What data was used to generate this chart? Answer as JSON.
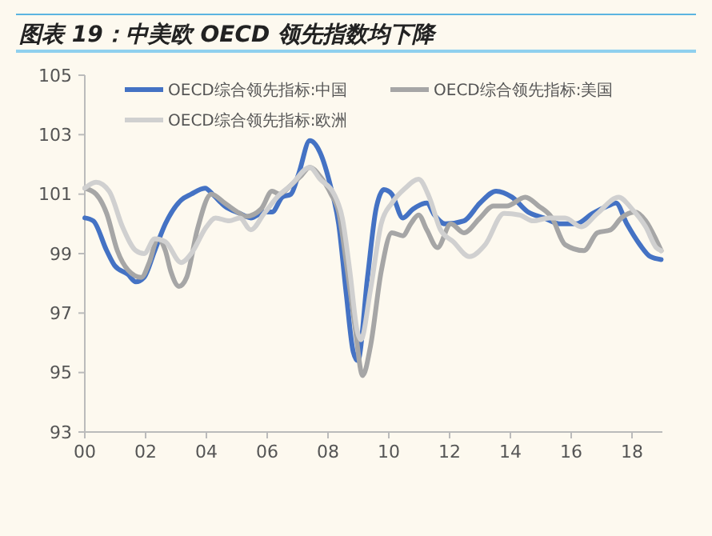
{
  "chart_data": {
    "type": "line",
    "title": "图表 19：中美欧 OECD 领先指数均下降",
    "xlim": [
      2000,
      2019
    ],
    "xticks": [
      {
        "value": 2000,
        "label": "00"
      },
      {
        "value": 2002,
        "label": "02"
      },
      {
        "value": 2004,
        "label": "04"
      },
      {
        "value": 2006,
        "label": "06"
      },
      {
        "value": 2008,
        "label": "08"
      },
      {
        "value": 2010,
        "label": "10"
      },
      {
        "value": 2012,
        "label": "12"
      },
      {
        "value": 2014,
        "label": "14"
      },
      {
        "value": 2016,
        "label": "16"
      },
      {
        "value": 2018,
        "label": "18"
      }
    ],
    "ylim": [
      93,
      105
    ],
    "yticks": [
      93,
      95,
      97,
      99,
      101,
      103,
      105
    ],
    "grid": false,
    "legend": "top",
    "marker": "none",
    "line_style": "solid",
    "series": [
      {
        "name": "OECD综合领先指标:中国",
        "color": "#4472c4",
        "x": [
          2000,
          2000.28,
          2000.72,
          2000.98,
          2001.42,
          2001.68,
          2001.95,
          2002.3,
          2002.65,
          2003.17,
          2003.5,
          2003.96,
          2004.2,
          2004.6,
          2005.1,
          2005.46,
          2005.9,
          2006.16,
          2006.5,
          2006.78,
          2007.04,
          2007.4,
          2007.74,
          2008.1,
          2008.35,
          2008.6,
          2008.83,
          2008.98,
          2009.3,
          2009.58,
          2009.84,
          2010.1,
          2010.46,
          2010.8,
          2011.25,
          2011.5,
          2011.86,
          2012.47,
          2013,
          2013.53,
          2014.05,
          2014.58,
          2015.1,
          2015.63,
          2016.16,
          2016.7,
          2017.2,
          2017.47,
          2017.83,
          2018.26,
          2018.6,
          2018.96
        ],
        "values": [
          100.2,
          100.1,
          99.1,
          98.6,
          98.3,
          98.05,
          98.2,
          99.1,
          100,
          100.8,
          101,
          101.2,
          101,
          100.6,
          100.35,
          100.2,
          100.4,
          100.4,
          100.9,
          101,
          101.7,
          102.8,
          102.4,
          101.2,
          100,
          97.65,
          95.7,
          95.4,
          98.2,
          100.5,
          101.15,
          101,
          100.2,
          100.5,
          100.7,
          100.3,
          100,
          100.1,
          100.7,
          101.1,
          100.9,
          100.4,
          100.2,
          100,
          100,
          100.35,
          100.6,
          100.7,
          100,
          99.3,
          98.9,
          98.8
        ]
      },
      {
        "name": "OECD综合领先指标:美国",
        "color": "#a6a6a6",
        "x": [
          2000,
          2000.37,
          2000.72,
          2001.07,
          2001.42,
          2001.86,
          2002.12,
          2002.4,
          2002.65,
          2002.83,
          2003.1,
          2003.35,
          2003.7,
          2004.16,
          2004.6,
          2005.1,
          2005.3,
          2005.8,
          2006.16,
          2006.4,
          2006.78,
          2007.1,
          2007.4,
          2007.74,
          2008.1,
          2008.35,
          2008.6,
          2008.88,
          2009.14,
          2009.4,
          2009.75,
          2010.1,
          2010.46,
          2010.72,
          2010.98,
          2011.25,
          2011.6,
          2012.04,
          2012.47,
          2013,
          2013.44,
          2013.88,
          2014.49,
          2014.93,
          2015.37,
          2015.8,
          2016.42,
          2016.86,
          2017.3,
          2017.65,
          2018.1,
          2018.45,
          2018.8,
          2018.96
        ],
        "values": [
          101.2,
          101,
          100.35,
          99.1,
          98.45,
          98.2,
          98.7,
          99.5,
          99.1,
          98.4,
          97.9,
          98.2,
          99.8,
          101,
          100.7,
          100.35,
          100.25,
          100.5,
          101.1,
          101,
          101.3,
          101.6,
          101.9,
          101.6,
          101,
          100.4,
          98.7,
          96.6,
          94.9,
          95.9,
          98.4,
          99.7,
          99.6,
          100,
          100.3,
          99.8,
          99.2,
          100,
          99.7,
          100.2,
          100.6,
          100.6,
          100.9,
          100.6,
          100.2,
          99.3,
          99.1,
          99.7,
          99.8,
          100.2,
          100.4,
          100.1,
          99.45,
          99.1
        ]
      },
      {
        "name": "OECD综合领先指标:欧洲",
        "color": "#d0d0d0",
        "x": [
          2000,
          2000.37,
          2000.8,
          2001.24,
          2001.68,
          2001.95,
          2002.3,
          2002.65,
          2003.17,
          2003.5,
          2004,
          2004.3,
          2004.75,
          2005.1,
          2005.46,
          2005.9,
          2006.33,
          2006.78,
          2007.4,
          2007.74,
          2008.2,
          2008.47,
          2008.72,
          2008.96,
          2009.08,
          2009.4,
          2009.75,
          2010.1,
          2010.54,
          2010.98,
          2011.33,
          2011.7,
          2012.12,
          2012.65,
          2013.17,
          2013.79,
          2014.3,
          2014.75,
          2015.28,
          2015.8,
          2016.33,
          2016.86,
          2017.56,
          2018,
          2018.45,
          2018.8,
          2018.96
        ],
        "values": [
          101.2,
          101.4,
          101.1,
          99.9,
          99.1,
          99,
          99.5,
          99.4,
          98.7,
          99,
          99.9,
          100.2,
          100.1,
          100.2,
          99.8,
          100.35,
          100.9,
          101.3,
          101.9,
          101.5,
          101,
          100.2,
          98.4,
          96.4,
          96.1,
          97.8,
          100,
          100.7,
          101.2,
          101.5,
          100.9,
          99.8,
          99.4,
          98.9,
          99.3,
          100.35,
          100.3,
          100.1,
          100.2,
          100.2,
          99.9,
          100.35,
          100.9,
          100.5,
          99.9,
          99.2,
          99.1
        ]
      }
    ]
  }
}
